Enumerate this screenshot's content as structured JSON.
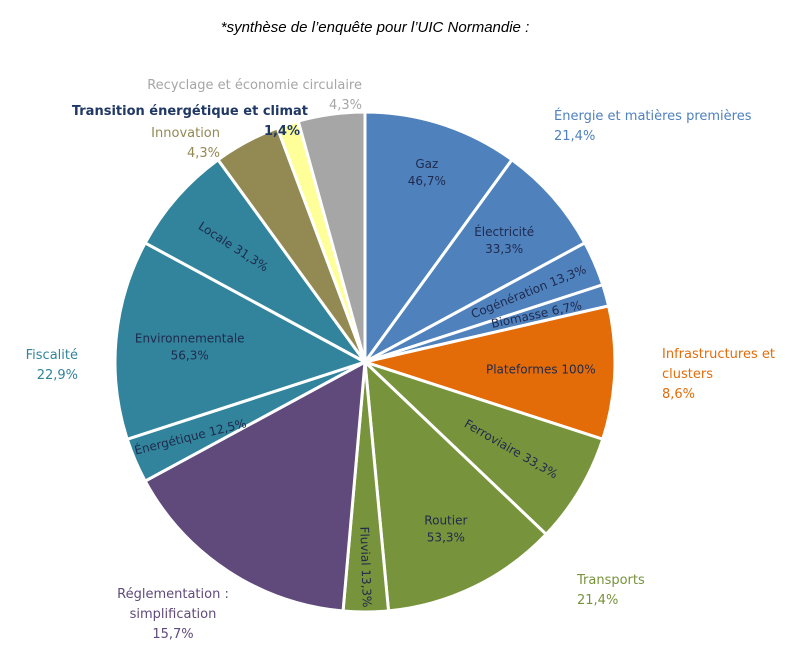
{
  "chart_data": {
    "type": "pie",
    "title": "*synthèse de l’enquête pour l’UIC Normandie :",
    "start_angle_deg": 0,
    "slices": [
      {
        "name": "Gaz",
        "pct": "46,7%",
        "value": 10.0,
        "color": "#4f81bd",
        "label_inline": false
      },
      {
        "name": "Électricité",
        "pct": "33,3%",
        "value": 7.1,
        "color": "#4f81bd",
        "label_inline": false
      },
      {
        "name": "Cogénération",
        "pct": "13,3%",
        "value": 2.9,
        "color": "#4f81bd",
        "label_inline": true
      },
      {
        "name": "Biomasse",
        "pct": "6,7%",
        "value": 1.4,
        "color": "#4f81bd",
        "label_inline": true
      },
      {
        "name": "Plateformes",
        "pct": "100%",
        "value": 8.6,
        "color": "#e36c09",
        "label_inline": true
      },
      {
        "name": "Ferroviaire",
        "pct": "33,3%",
        "value": 7.1,
        "color": "#77933c",
        "label_inline": true
      },
      {
        "name": "Routier",
        "pct": "53,3%",
        "value": 11.4,
        "color": "#77933c",
        "label_inline": false
      },
      {
        "name": "Fluvial",
        "pct": "13,3%",
        "value": 2.9,
        "color": "#77933c",
        "label_inline": true
      },
      {
        "name": "",
        "pct": "",
        "value": 15.7,
        "color": "#604a7b",
        "label_inline": false
      },
      {
        "name": "Énergétique",
        "pct": "12,5%",
        "value": 2.9,
        "color": "#31849b",
        "label_inline": true
      },
      {
        "name": "Environnementale",
        "pct": "56,3%",
        "value": 12.9,
        "color": "#31849b",
        "label_inline": false
      },
      {
        "name": "Locale",
        "pct": "31,3%",
        "value": 7.1,
        "color": "#31849b",
        "label_inline": true
      },
      {
        "name": "",
        "pct": "",
        "value": 4.3,
        "color": "#938953",
        "label_inline": false
      },
      {
        "name": "",
        "pct": "",
        "value": 1.4,
        "color": "#ffff99",
        "label_inline": false
      },
      {
        "name": "",
        "pct": "",
        "value": 4.3,
        "color": "#a6a6a6",
        "label_inline": false
      }
    ],
    "categories": [
      {
        "lines": [
          "Énergie et matières premières",
          "21,4%"
        ],
        "color": "#4f81bd",
        "anchor": "start"
      },
      {
        "lines": [
          "Infrastructures et",
          "clusters",
          "8,6%"
        ],
        "color": "#e36c09",
        "anchor": "start"
      },
      {
        "lines": [
          "Transports",
          "21,4%"
        ],
        "color": "#77933c",
        "anchor": "start"
      },
      {
        "lines": [
          "Réglementation :",
          "simplification",
          "15,7%"
        ],
        "color": "#604a7b",
        "anchor": "middle"
      },
      {
        "lines": [
          "Fiscalité",
          "22,9%"
        ],
        "color": "#31849b",
        "anchor": "end"
      },
      {
        "lines": [
          "Innovation",
          "4,3%"
        ],
        "color": "#938953",
        "anchor": "end"
      },
      {
        "lines": [
          "Transition énergétique et climat",
          "1,4%"
        ],
        "color": "#1f3864",
        "anchor": "end",
        "bold": true
      },
      {
        "lines": [
          "Recyclage et économie circulaire",
          "4,3%"
        ],
        "color": "#a6a6a6",
        "anchor": "end"
      }
    ]
  }
}
